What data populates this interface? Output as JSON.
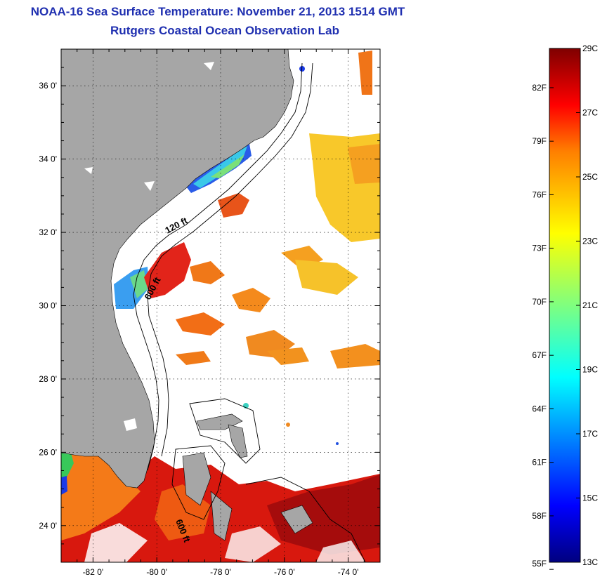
{
  "title": "NOAA-16 Sea Surface Temperature:  November 21, 2013 1514 GMT",
  "subtitle": "Rutgers Coastal Ocean Observation Lab",
  "map": {
    "lat_labels": [
      "36 0'",
      "34 0'",
      "32 0'",
      "30 0'",
      "28 0'",
      "26 0'",
      "24 0'"
    ],
    "lat_values": [
      36,
      34,
      32,
      30,
      28,
      26,
      24
    ],
    "lon_labels": [
      "-82 0'",
      "-80 0'",
      "-78 0'",
      "-76 0'",
      "-74 0'"
    ],
    "lon_values": [
      -82,
      -80,
      -78,
      -76,
      -74
    ],
    "lon_range": [
      -83,
      -73
    ],
    "lat_range": [
      23,
      37
    ],
    "contour_labels": [
      "120 ft",
      "600 ft",
      "600 ft"
    ],
    "colors": {
      "land": "#a6a6a6",
      "no_data": "#ffffff"
    }
  },
  "colorbar": {
    "celsius_labels": [
      "29C",
      "27C",
      "25C",
      "23C",
      "21C",
      "19C",
      "17C",
      "15C",
      "13C"
    ],
    "celsius_values": [
      29,
      27,
      25,
      23,
      21,
      19,
      17,
      15,
      13
    ],
    "fahrenheit_labels": [
      "82F",
      "79F",
      "76F",
      "73F",
      "70F",
      "67F",
      "64F",
      "61F",
      "58F",
      "55F"
    ],
    "fahrenheit_values": [
      82,
      79,
      76,
      73,
      70,
      67,
      64,
      61,
      58,
      55
    ],
    "range_c": [
      13,
      29
    ],
    "colormap": [
      "#00007f",
      "#0000ff",
      "#007fff",
      "#00ffff",
      "#7fff7f",
      "#ffff00",
      "#ff7f00",
      "#ff0000",
      "#7f0000"
    ]
  }
}
